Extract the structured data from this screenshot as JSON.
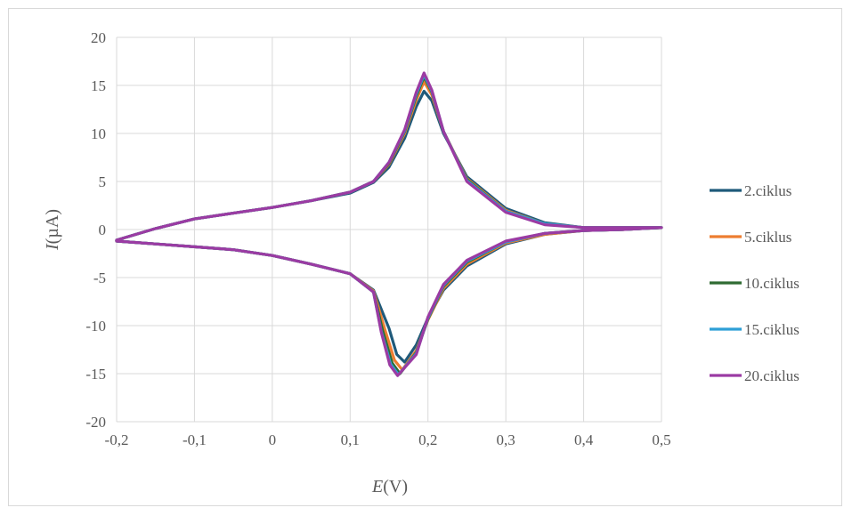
{
  "chart_data": {
    "type": "line",
    "title": "",
    "xlabel": {
      "symbol": "E",
      "unit": "(V)"
    },
    "ylabel": {
      "symbol": "I",
      "unit": "(µA)"
    },
    "xlim": [
      -0.2,
      0.5
    ],
    "ylim": [
      -20,
      20
    ],
    "x_ticks": [
      "-0,2",
      "-0,1",
      "0",
      "0,1",
      "0,2",
      "0,3",
      "0,4",
      "0,5"
    ],
    "x_tick_values": [
      -0.2,
      -0.1,
      0,
      0.1,
      0.2,
      0.3,
      0.4,
      0.5
    ],
    "y_ticks": [
      "20",
      "15",
      "10",
      "5",
      "0",
      "-5",
      "-10",
      "-15",
      "-20"
    ],
    "y_tick_values": [
      20,
      15,
      10,
      5,
      0,
      -5,
      -10,
      -15,
      -20
    ],
    "grid": true,
    "legend_position": "right",
    "series": [
      {
        "name": "2.ciklus",
        "color": "#1f5a7a",
        "anodic_peak": [
          0.195,
          14.4
        ],
        "cathodic_peak": [
          0.17,
          -13.8
        ],
        "points": [
          [
            -0.2,
            -1.1
          ],
          [
            -0.15,
            0.1
          ],
          [
            -0.1,
            1.1
          ],
          [
            -0.05,
            1.7
          ],
          [
            0,
            2.3
          ],
          [
            0.05,
            3.0
          ],
          [
            0.1,
            3.8
          ],
          [
            0.13,
            4.9
          ],
          [
            0.15,
            6.5
          ],
          [
            0.17,
            9.5
          ],
          [
            0.185,
            12.8
          ],
          [
            0.195,
            14.4
          ],
          [
            0.205,
            13.4
          ],
          [
            0.22,
            10.0
          ],
          [
            0.25,
            5.5
          ],
          [
            0.3,
            2.2
          ],
          [
            0.35,
            0.7
          ],
          [
            0.4,
            0.2
          ],
          [
            0.5,
            0.2
          ],
          [
            0.45,
            0.0
          ],
          [
            0.4,
            -0.1
          ],
          [
            0.35,
            -0.5
          ],
          [
            0.3,
            -1.5
          ],
          [
            0.25,
            -3.8
          ],
          [
            0.22,
            -6.3
          ],
          [
            0.2,
            -9.2
          ],
          [
            0.185,
            -12.0
          ],
          [
            0.17,
            -13.8
          ],
          [
            0.16,
            -13.0
          ],
          [
            0.15,
            -10.3
          ],
          [
            0.13,
            -6.3
          ],
          [
            0.1,
            -4.6
          ],
          [
            0.05,
            -3.6
          ],
          [
            0,
            -2.7
          ],
          [
            -0.05,
            -2.1
          ],
          [
            -0.1,
            -1.8
          ],
          [
            -0.15,
            -1.5
          ],
          [
            -0.2,
            -1.2
          ]
        ]
      },
      {
        "name": "5.ciklus",
        "color": "#ed7d31",
        "anodic_peak": [
          0.195,
          15.4
        ],
        "cathodic_peak": [
          0.167,
          -14.6
        ],
        "points": [
          [
            -0.2,
            -1.1
          ],
          [
            -0.15,
            0.1
          ],
          [
            -0.1,
            1.1
          ],
          [
            -0.05,
            1.7
          ],
          [
            0,
            2.3
          ],
          [
            0.05,
            3.0
          ],
          [
            0.1,
            3.9
          ],
          [
            0.13,
            5.0
          ],
          [
            0.15,
            6.8
          ],
          [
            0.17,
            10.0
          ],
          [
            0.185,
            13.5
          ],
          [
            0.195,
            15.4
          ],
          [
            0.205,
            14.0
          ],
          [
            0.22,
            10.2
          ],
          [
            0.25,
            5.3
          ],
          [
            0.3,
            2.0
          ],
          [
            0.35,
            0.6
          ],
          [
            0.4,
            0.2
          ],
          [
            0.5,
            0.2
          ],
          [
            0.45,
            0.0
          ],
          [
            0.4,
            -0.1
          ],
          [
            0.35,
            -0.5
          ],
          [
            0.3,
            -1.4
          ],
          [
            0.25,
            -3.6
          ],
          [
            0.22,
            -6.1
          ],
          [
            0.2,
            -9.4
          ],
          [
            0.185,
            -12.6
          ],
          [
            0.167,
            -14.6
          ],
          [
            0.157,
            -13.6
          ],
          [
            0.145,
            -10.5
          ],
          [
            0.13,
            -6.4
          ],
          [
            0.1,
            -4.6
          ],
          [
            0.05,
            -3.6
          ],
          [
            0,
            -2.7
          ],
          [
            -0.05,
            -2.1
          ],
          [
            -0.1,
            -1.8
          ],
          [
            -0.15,
            -1.5
          ],
          [
            -0.2,
            -1.2
          ]
        ]
      },
      {
        "name": "10.ciklus",
        "color": "#2e6b32",
        "anodic_peak": [
          0.195,
          15.9
        ],
        "cathodic_peak": [
          0.164,
          -15.0
        ],
        "points": [
          [
            -0.2,
            -1.1
          ],
          [
            -0.15,
            0.1
          ],
          [
            -0.1,
            1.1
          ],
          [
            -0.05,
            1.7
          ],
          [
            0,
            2.3
          ],
          [
            0.05,
            3.0
          ],
          [
            0.1,
            3.9
          ],
          [
            0.13,
            5.0
          ],
          [
            0.15,
            6.9
          ],
          [
            0.17,
            10.2
          ],
          [
            0.185,
            13.9
          ],
          [
            0.195,
            15.9
          ],
          [
            0.205,
            14.3
          ],
          [
            0.22,
            10.2
          ],
          [
            0.25,
            5.2
          ],
          [
            0.3,
            1.9
          ],
          [
            0.35,
            0.6
          ],
          [
            0.4,
            0.2
          ],
          [
            0.5,
            0.2
          ],
          [
            0.45,
            0.0
          ],
          [
            0.4,
            -0.1
          ],
          [
            0.35,
            -0.4
          ],
          [
            0.3,
            -1.3
          ],
          [
            0.25,
            -3.4
          ],
          [
            0.22,
            -5.9
          ],
          [
            0.2,
            -9.3
          ],
          [
            0.185,
            -12.8
          ],
          [
            0.164,
            -15.0
          ],
          [
            0.154,
            -13.9
          ],
          [
            0.142,
            -10.6
          ],
          [
            0.13,
            -6.5
          ],
          [
            0.1,
            -4.6
          ],
          [
            0.05,
            -3.6
          ],
          [
            0,
            -2.7
          ],
          [
            -0.05,
            -2.1
          ],
          [
            -0.1,
            -1.8
          ],
          [
            -0.15,
            -1.5
          ],
          [
            -0.2,
            -1.2
          ]
        ]
      },
      {
        "name": "15.ciklus",
        "color": "#2e9fd6",
        "anodic_peak": [
          0.195,
          16.1
        ],
        "cathodic_peak": [
          0.162,
          -15.1
        ],
        "points": [
          [
            -0.2,
            -1.1
          ],
          [
            -0.15,
            0.1
          ],
          [
            -0.1,
            1.1
          ],
          [
            -0.05,
            1.7
          ],
          [
            0,
            2.3
          ],
          [
            0.05,
            3.0
          ],
          [
            0.1,
            3.9
          ],
          [
            0.13,
            5.0
          ],
          [
            0.15,
            7.0
          ],
          [
            0.17,
            10.3
          ],
          [
            0.185,
            14.1
          ],
          [
            0.195,
            16.1
          ],
          [
            0.205,
            14.4
          ],
          [
            0.22,
            10.2
          ],
          [
            0.25,
            5.1
          ],
          [
            0.3,
            1.9
          ],
          [
            0.35,
            0.6
          ],
          [
            0.4,
            0.2
          ],
          [
            0.5,
            0.2
          ],
          [
            0.45,
            0.0
          ],
          [
            0.4,
            -0.1
          ],
          [
            0.35,
            -0.4
          ],
          [
            0.3,
            -1.3
          ],
          [
            0.25,
            -3.3
          ],
          [
            0.22,
            -5.8
          ],
          [
            0.2,
            -9.2
          ],
          [
            0.185,
            -12.9
          ],
          [
            0.162,
            -15.1
          ],
          [
            0.152,
            -14.0
          ],
          [
            0.14,
            -10.6
          ],
          [
            0.13,
            -6.5
          ],
          [
            0.1,
            -4.6
          ],
          [
            0.05,
            -3.6
          ],
          [
            0,
            -2.7
          ],
          [
            -0.05,
            -2.1
          ],
          [
            -0.1,
            -1.8
          ],
          [
            -0.15,
            -1.5
          ],
          [
            -0.2,
            -1.2
          ]
        ]
      },
      {
        "name": "20.ciklus",
        "color": "#9b3ba3",
        "anodic_peak": [
          0.195,
          16.3
        ],
        "cathodic_peak": [
          0.161,
          -15.2
        ],
        "points": [
          [
            -0.2,
            -1.1
          ],
          [
            -0.15,
            0.1
          ],
          [
            -0.1,
            1.1
          ],
          [
            -0.05,
            1.7
          ],
          [
            0,
            2.3
          ],
          [
            0.05,
            3.0
          ],
          [
            0.1,
            3.9
          ],
          [
            0.13,
            5.0
          ],
          [
            0.15,
            7.0
          ],
          [
            0.17,
            10.4
          ],
          [
            0.185,
            14.3
          ],
          [
            0.195,
            16.3
          ],
          [
            0.205,
            14.5
          ],
          [
            0.22,
            10.2
          ],
          [
            0.25,
            5.0
          ],
          [
            0.3,
            1.8
          ],
          [
            0.35,
            0.5
          ],
          [
            0.4,
            0.2
          ],
          [
            0.5,
            0.2
          ],
          [
            0.45,
            0.0
          ],
          [
            0.4,
            -0.1
          ],
          [
            0.35,
            -0.4
          ],
          [
            0.3,
            -1.2
          ],
          [
            0.25,
            -3.2
          ],
          [
            0.22,
            -5.7
          ],
          [
            0.2,
            -9.1
          ],
          [
            0.185,
            -13.0
          ],
          [
            0.161,
            -15.2
          ],
          [
            0.151,
            -14.1
          ],
          [
            0.14,
            -10.7
          ],
          [
            0.13,
            -6.5
          ],
          [
            0.1,
            -4.6
          ],
          [
            0.05,
            -3.6
          ],
          [
            0,
            -2.7
          ],
          [
            -0.05,
            -2.1
          ],
          [
            -0.1,
            -1.8
          ],
          [
            -0.15,
            -1.5
          ],
          [
            -0.2,
            -1.2
          ]
        ]
      }
    ]
  }
}
